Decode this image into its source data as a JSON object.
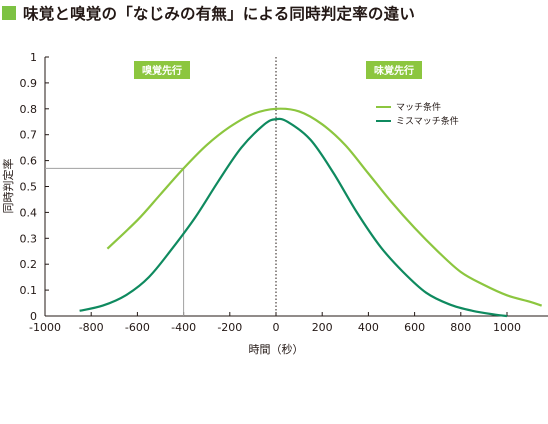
{
  "title": "味覚と嗅覚の「なじみの有無」による同時判定率の違い",
  "colors": {
    "light_green": "#8cc63f",
    "dark_green": "#0f8a5f",
    "accent": "#7dc243",
    "guide": "#a0a0a0"
  },
  "chart_data": {
    "type": "line",
    "title": "味覚と嗅覚の「なじみの有無」による同時判定率の違い",
    "xlabel": "時間（秒）",
    "ylabel": "同時判定率",
    "xlim": [
      -1000,
      1150
    ],
    "ylim": [
      0,
      1
    ],
    "x_ticks": [
      -1000,
      -800,
      -600,
      -400,
      -200,
      0,
      200,
      400,
      600,
      800,
      1000
    ],
    "y_ticks": [
      0,
      0.1,
      0.2,
      0.3,
      0.4,
      0.5,
      0.6,
      0.7,
      0.8,
      0.9,
      1
    ],
    "grid": false,
    "legend_position": "top-right",
    "region_labels": {
      "left": "嗅覚先行",
      "right": "味覚先行"
    },
    "center_line_x": 0,
    "guide_point": {
      "x": -400,
      "y": 0.57
    },
    "series": [
      {
        "name": "マッチ条件",
        "color": "#8cc63f",
        "x": [
          -730,
          -600,
          -500,
          -400,
          -300,
          -200,
          -100,
          0,
          100,
          200,
          300,
          400,
          500,
          600,
          700,
          800,
          900,
          1000,
          1100,
          1150
        ],
        "y": [
          0.26,
          0.37,
          0.47,
          0.57,
          0.66,
          0.73,
          0.78,
          0.8,
          0.79,
          0.74,
          0.66,
          0.55,
          0.44,
          0.34,
          0.25,
          0.17,
          0.12,
          0.08,
          0.055,
          0.04
        ]
      },
      {
        "name": "ミスマッチ条件",
        "color": "#0f8a5f",
        "x": [
          -850,
          -750,
          -650,
          -550,
          -450,
          -350,
          -250,
          -150,
          -50,
          0,
          50,
          150,
          250,
          350,
          450,
          550,
          650,
          750,
          850,
          950,
          1000
        ],
        "y": [
          0.02,
          0.04,
          0.08,
          0.15,
          0.26,
          0.38,
          0.52,
          0.65,
          0.74,
          0.76,
          0.75,
          0.68,
          0.55,
          0.4,
          0.27,
          0.17,
          0.09,
          0.045,
          0.02,
          0.005,
          0.0
        ]
      }
    ]
  }
}
